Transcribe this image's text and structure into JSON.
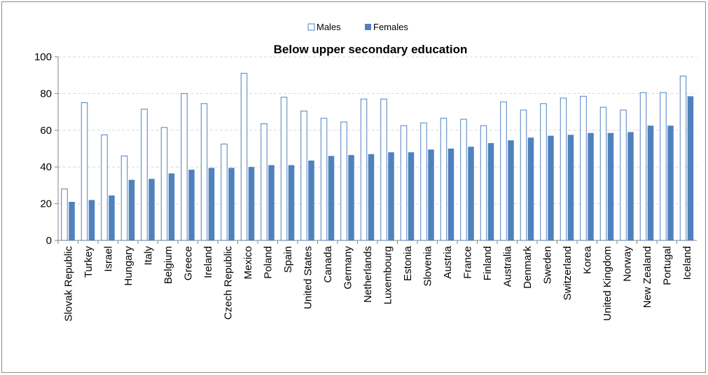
{
  "chart_data": {
    "type": "bar",
    "title": "Below upper secondary education",
    "xlabel": "",
    "ylabel": "",
    "ylim": [
      0,
      100
    ],
    "yticks": [
      0,
      20,
      40,
      60,
      80,
      100
    ],
    "grid": true,
    "legend_position": "top-center",
    "categories": [
      "Slovak Republic",
      "Turkey",
      "Israel",
      "Hungary",
      "Italy",
      "Belgium",
      "Greece",
      "Ireland",
      "Czech Republic",
      "Mexico",
      "Poland",
      "Spain",
      "United States",
      "Canada",
      "Germany",
      "Netherlands",
      "Luxembourg",
      "Estonia",
      "Slovenia",
      "Austria",
      "France",
      "Finland",
      "Australia",
      "Denmark",
      "Sweden",
      "Switzerland",
      "Korea",
      "United Kingdom",
      "Norway",
      "New Zealand",
      "Portugal",
      "Iceland"
    ],
    "series": [
      {
        "name": "Males",
        "style": "outline",
        "color": "#4f81bd",
        "values": [
          28,
          75,
          57.5,
          46,
          71.5,
          61.5,
          80,
          74.5,
          52.5,
          91,
          63.5,
          78,
          70.5,
          66.5,
          64.5,
          77,
          77,
          62.5,
          64,
          66.5,
          66,
          62.5,
          75.5,
          71,
          74.5,
          77.5,
          78.5,
          72.5,
          71,
          80.5,
          80.5,
          89.5
        ]
      },
      {
        "name": "Females",
        "style": "filled",
        "color": "#4f81bd",
        "values": [
          21,
          22,
          24.5,
          33,
          33.5,
          36.5,
          38.5,
          39.5,
          39.5,
          40,
          41,
          41,
          43.5,
          46,
          46.5,
          47,
          48,
          48,
          49.5,
          50,
          51,
          53,
          54.5,
          56,
          57,
          57.5,
          58.5,
          58.5,
          59,
          62.5,
          62.5,
          78.5
        ]
      }
    ]
  }
}
